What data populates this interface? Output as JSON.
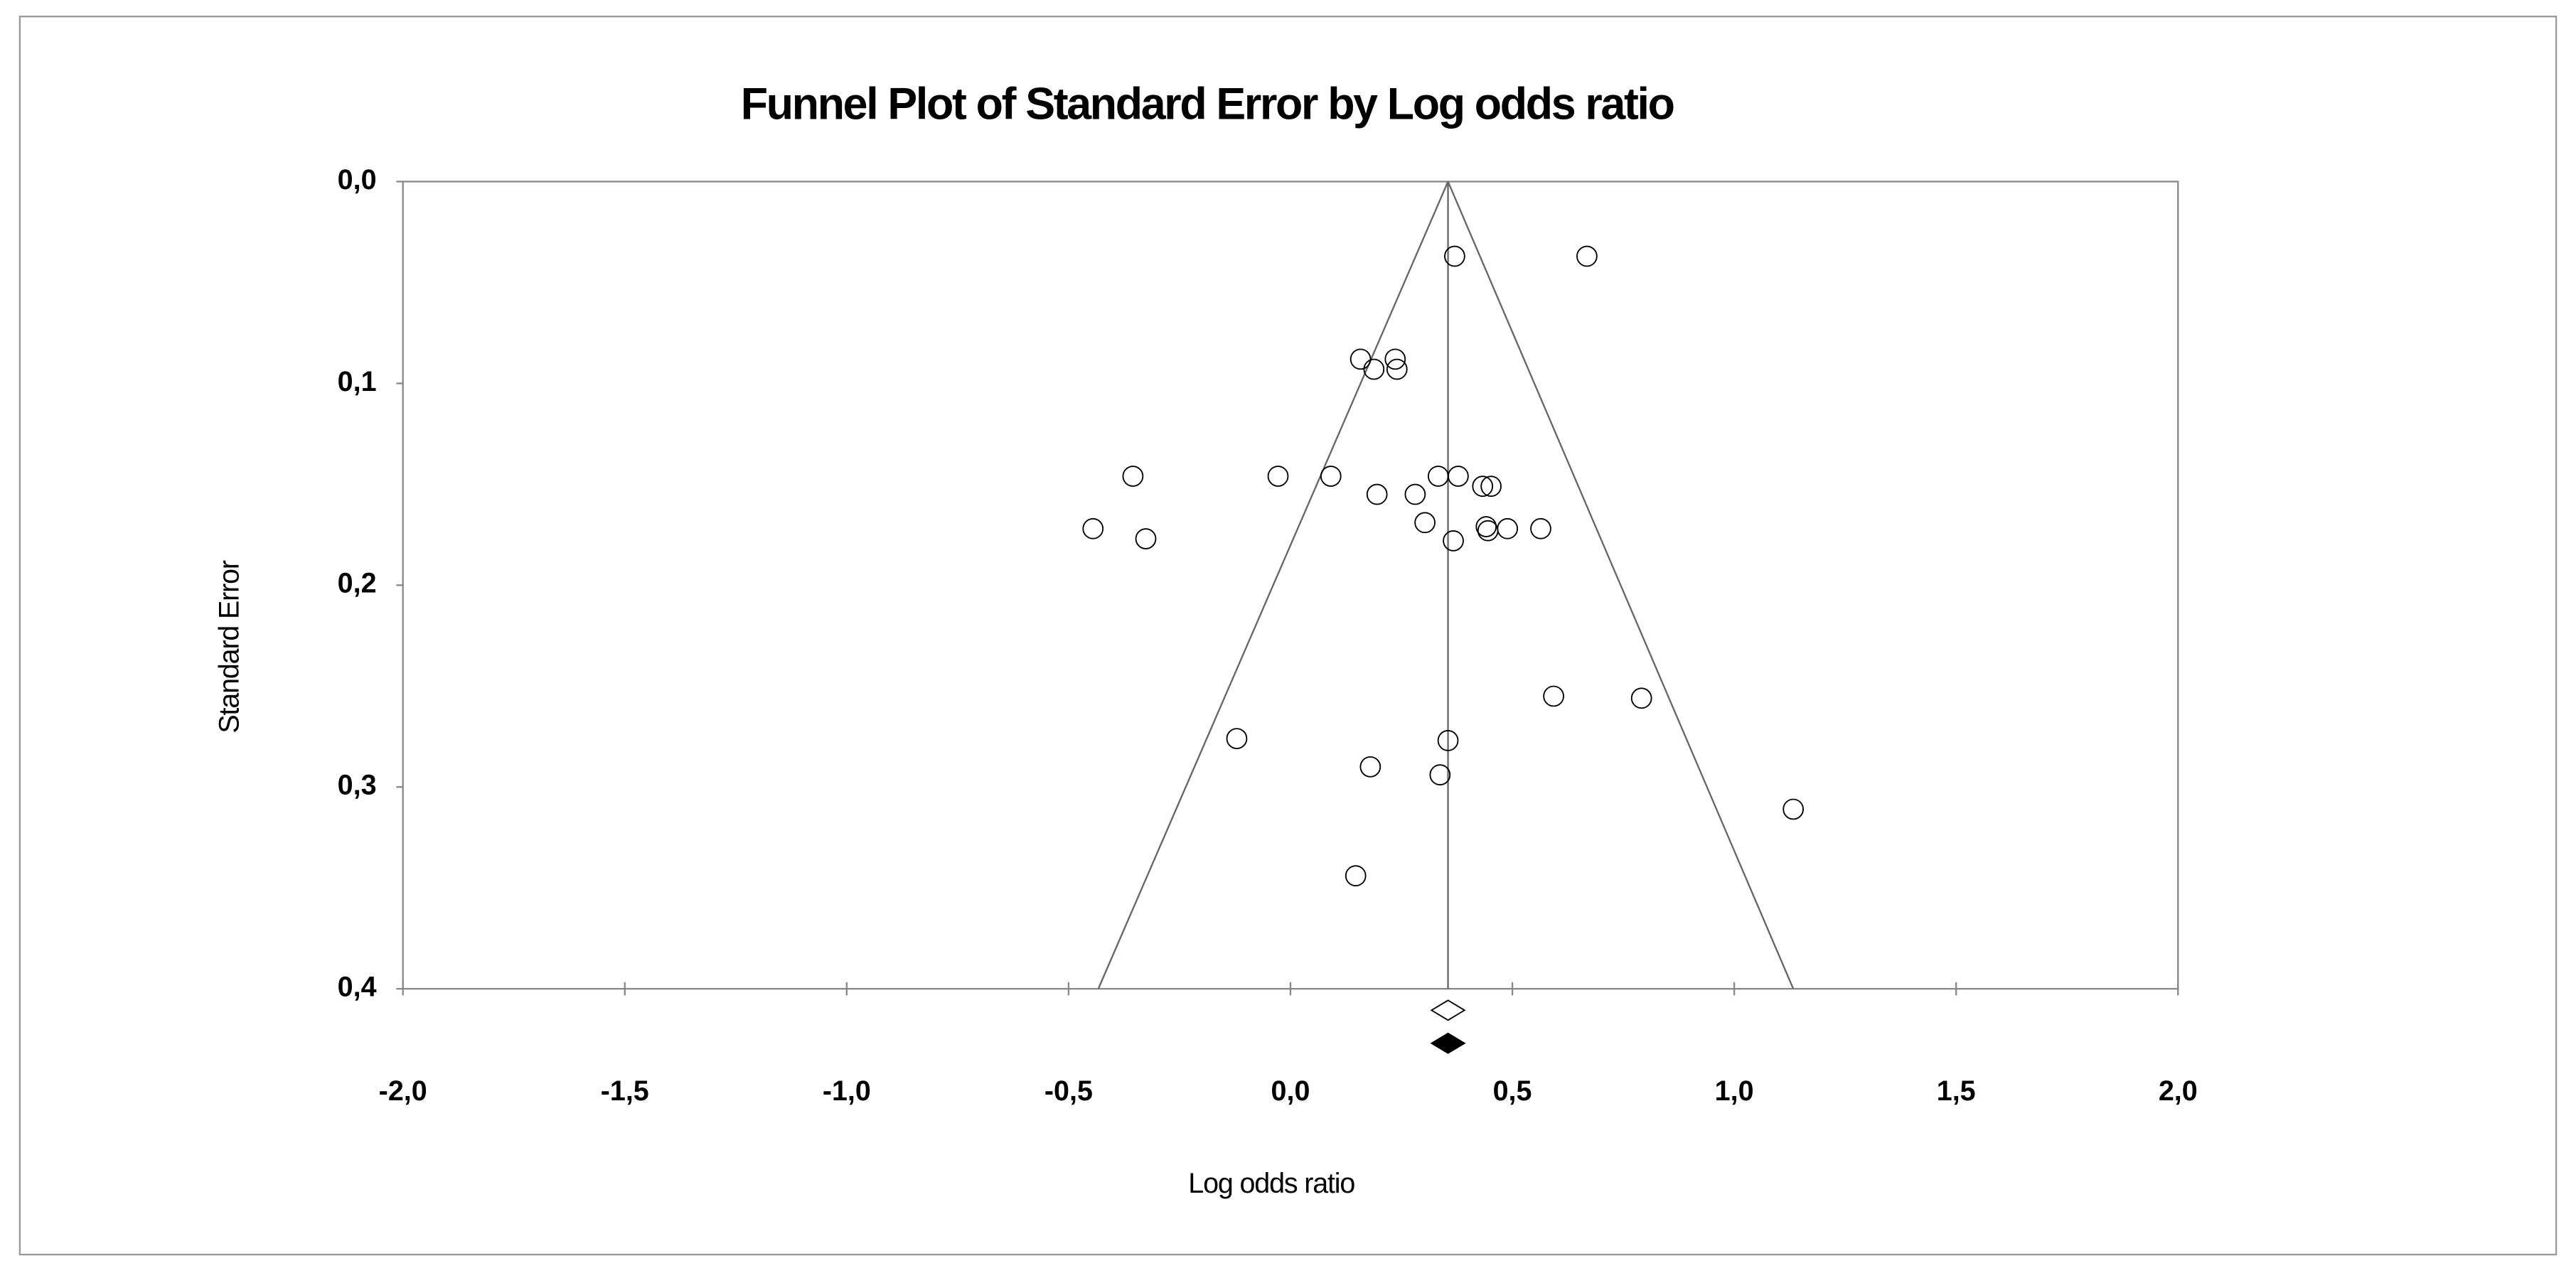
{
  "chart_data": {
    "type": "funnel",
    "title": "Funnel Plot of Standard Error by Log odds ratio",
    "x_label": "Log odds ratio",
    "y_label": "Standard Error",
    "xlim": [
      -2,
      2
    ],
    "ylim": [
      0,
      0.4
    ],
    "y_inverted": true,
    "xticks": [
      {
        "value": -2,
        "label": "-2,0"
      },
      {
        "value": -1.5,
        "label": "-1,5"
      },
      {
        "value": -1,
        "label": "-1,0"
      },
      {
        "value": -0.5,
        "label": "-0,5"
      },
      {
        "value": 0,
        "label": "0,0"
      },
      {
        "value": 0.5,
        "label": "0,5"
      },
      {
        "value": 1,
        "label": "1,0"
      },
      {
        "value": 1.5,
        "label": "1,5"
      },
      {
        "value": 2,
        "label": "2,0"
      }
    ],
    "yticks": [
      {
        "value": 0,
        "label": "0,0"
      },
      {
        "value": 0.1,
        "label": "0,1"
      },
      {
        "value": 0.2,
        "label": "0,2"
      },
      {
        "value": 0.3,
        "label": "0,3"
      },
      {
        "value": 0.4,
        "label": "0,4"
      }
    ],
    "x": [
      0.37,
      0.668,
      0.158,
      0.236,
      0.188,
      0.24,
      -0.355,
      -0.028,
      0.091,
      0.333,
      0.378,
      0.195,
      0.281,
      0.433,
      0.452,
      -0.445,
      -0.326,
      0.303,
      0.367,
      0.441,
      0.445,
      0.489,
      0.564,
      0.593,
      0.791,
      -0.121,
      0.355,
      0.18,
      0.337,
      1.133,
      0.147
    ],
    "values": [
      0.037,
      0.037,
      0.088,
      0.088,
      0.093,
      0.093,
      0.146,
      0.146,
      0.146,
      0.146,
      0.146,
      0.155,
      0.155,
      0.151,
      0.151,
      0.172,
      0.177,
      0.169,
      0.178,
      0.171,
      0.173,
      0.172,
      0.172,
      0.255,
      0.256,
      0.276,
      0.277,
      0.29,
      0.294,
      0.311,
      0.344
    ],
    "combined_effect": 0.355,
    "funnel_limits": [
      -0.433,
      1.133
    ],
    "summary": [
      {
        "value": 0.355,
        "filled": false
      },
      {
        "value": 0.355,
        "filled": true
      }
    ],
    "color": "#000000"
  }
}
